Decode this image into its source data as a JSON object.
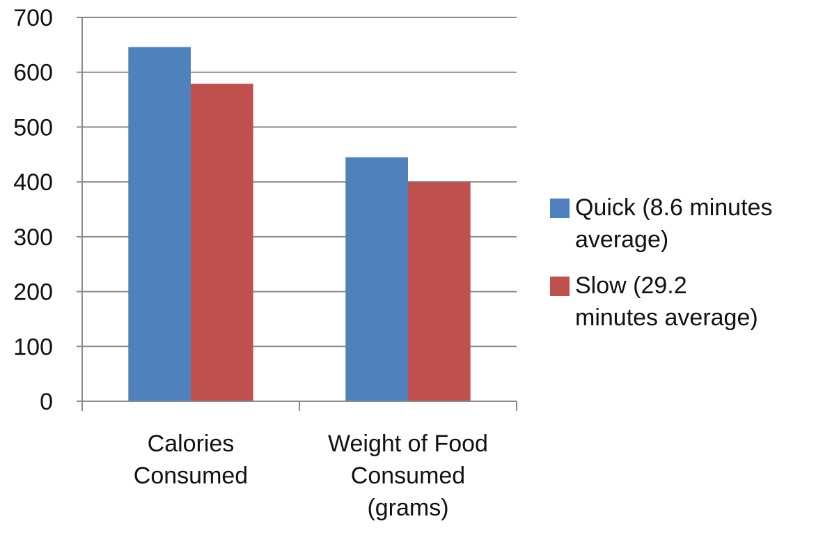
{
  "chart_data": {
    "type": "bar",
    "categories": [
      "Calories Consumed",
      "Weight of Food Consumed (grams)"
    ],
    "category_lines": [
      [
        "Calories",
        "Consumed"
      ],
      [
        "Weight of Food",
        "Consumed",
        "(grams)"
      ]
    ],
    "series": [
      {
        "name": "Quick (8.6 minutes average)",
        "name_lines": [
          "Quick (8.6 minutes",
          "average)"
        ],
        "color": "#4F81BD",
        "values": [
          646,
          445
        ]
      },
      {
        "name": "Slow (29.2 minutes average)",
        "name_lines": [
          "Slow (29.2",
          "minutes average)"
        ],
        "color": "#C0504D",
        "values": [
          579,
          400
        ]
      }
    ],
    "title": "",
    "xlabel": "",
    "ylabel": "",
    "ylim": [
      0,
      700
    ],
    "yticks": [
      0,
      100,
      200,
      300,
      400,
      500,
      600,
      700
    ],
    "grid": true,
    "legend_position": "right"
  }
}
